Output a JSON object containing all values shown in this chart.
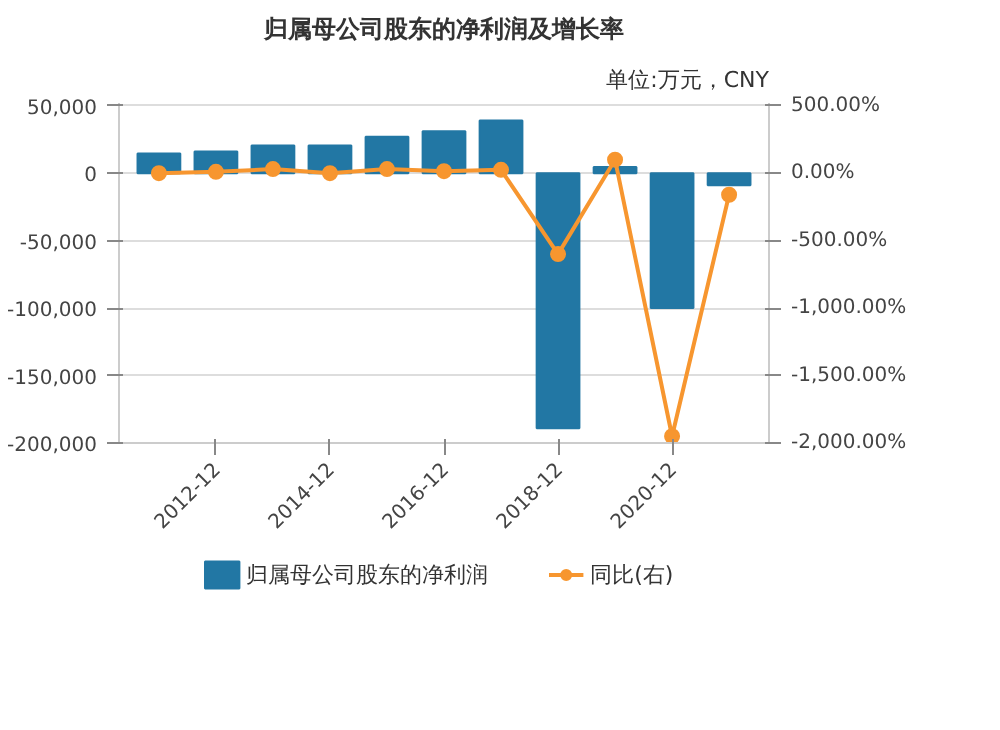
{
  "chart_data": {
    "type": "bar",
    "title": "归属母公司股东的净利润及增长率",
    "annotations": [
      "单位:万元，CNY"
    ],
    "categories": [
      null,
      "2012-12",
      null,
      "2014-12",
      null,
      "2016-12",
      null,
      "2018-12",
      null,
      "2020-12",
      null
    ],
    "series": [
      {
        "name": "归属母公司股东的净利润",
        "color": "#2277a4",
        "values": [
          14500,
          16000,
          20500,
          20500,
          27000,
          31000,
          39000,
          -189000,
          4500,
          -100000,
          -9000
        ]
      },
      {
        "name": "同比(右)",
        "color": "#f7962f",
        "type": "line",
        "axis": "y2",
        "marker": "circle",
        "values": [
          0,
          10,
          30,
          0,
          30,
          15,
          25,
          -600,
          100,
          -1950,
          -160
        ]
      }
    ],
    "ylim": [
      -200000,
      52000
    ],
    "yticks": [
      {
        "value": -200000,
        "label": "-200,000"
      },
      {
        "value": -150000,
        "label": "-150,000"
      },
      {
        "value": -100000,
        "label": "-100,000"
      },
      {
        "value": -50000,
        "label": "-50,000"
      },
      0,
      {
        "value": 50000,
        "label": "50,000"
      }
    ],
    "y2lim": [
      -2000,
      520
    ],
    "y2ticks": [
      {
        "value": -2000,
        "label": "-2,000.00%"
      },
      {
        "value": -1500,
        "label": "-1,500.00%"
      },
      {
        "value": -1000,
        "label": "-1,000.00%"
      },
      {
        "value": -500,
        "label": "-500.00%"
      },
      {
        "value": 0,
        "label": "0.00%"
      },
      {
        "value": 500,
        "label": "500.00%"
      }
    ],
    "grid": "y",
    "legend": "bottom"
  }
}
